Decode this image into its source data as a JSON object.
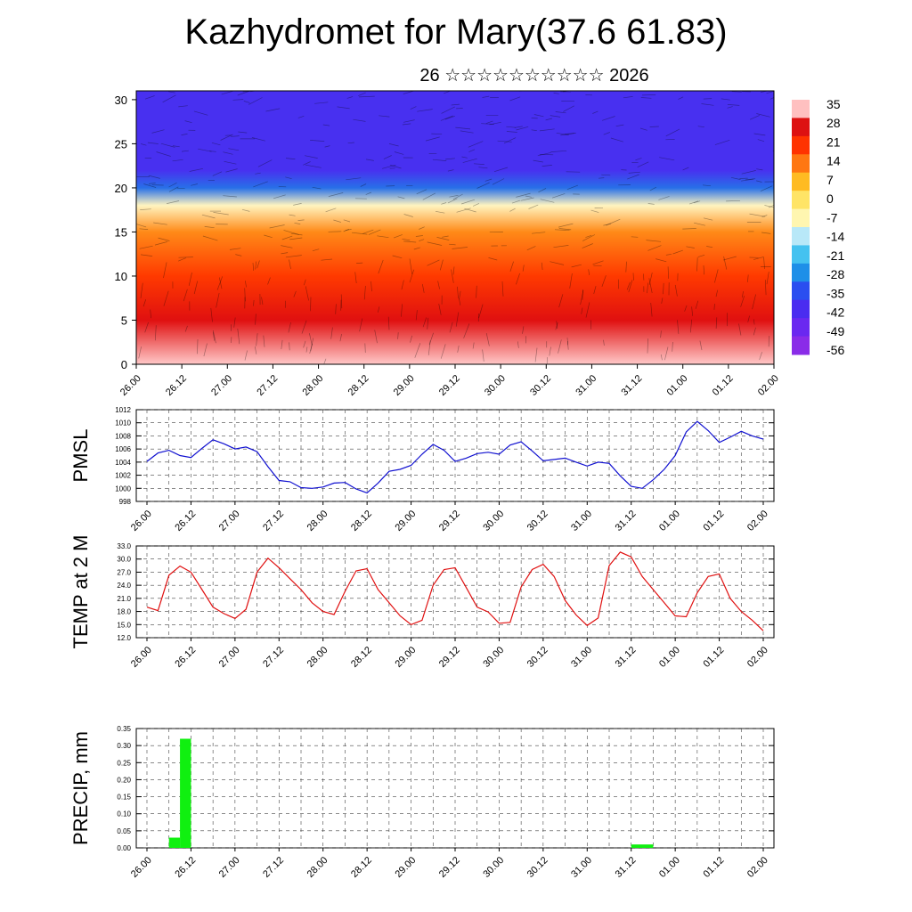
{
  "title": "Kazhydromet for Mary(37.6 61.83)",
  "subtitle": "26 ☆☆☆☆☆☆☆☆☆☆ 2026",
  "time_labels": [
    "26.00",
    "26.12",
    "27.00",
    "27.12",
    "28.00",
    "28.12",
    "29.00",
    "29.12",
    "30.00",
    "30.12",
    "31.00",
    "31.12",
    "01.00",
    "01.12",
    "02.00"
  ],
  "chart_data": [
    {
      "type": "heatmap",
      "panel": "cross-section",
      "y_ticks": [
        "0",
        "5",
        "10",
        "15",
        "20",
        "25",
        "30"
      ],
      "ylim": [
        0,
        31
      ],
      "colorbar": {
        "labels": [
          "35",
          "28",
          "21",
          "14",
          "7",
          "0",
          "-7",
          "-14",
          "-21",
          "-28",
          "-35",
          "-42",
          "-49",
          "-56"
        ],
        "colors": [
          "#ffc0c0",
          "#dd1111",
          "#ff3300",
          "#ff7711",
          "#ffbb22",
          "#ffe466",
          "#fff6b0",
          "#b8e8f8",
          "#44c2f0",
          "#1e8fe8",
          "#2a4ef0",
          "#4a2cf0",
          "#6a28f0",
          "#8a2ce8"
        ]
      },
      "temperature_profile": [
        {
          "level": 0,
          "temp": 30
        },
        {
          "level": 5,
          "temp": 24
        },
        {
          "level": 10,
          "temp": 14
        },
        {
          "level": 15,
          "temp": 2
        },
        {
          "level": 18,
          "temp": -22
        },
        {
          "level": 20,
          "temp": -40
        },
        {
          "level": 22,
          "temp": -54
        },
        {
          "level": 25,
          "temp": -58
        },
        {
          "level": 31,
          "temp": -56
        }
      ]
    },
    {
      "type": "line",
      "panel": "pmsl",
      "ylabel": "PMSL",
      "ylim": [
        998,
        1012
      ],
      "y_ticks": [
        "998",
        "1000",
        "1002",
        "1004",
        "1006",
        "1008",
        "1010",
        "1012"
      ],
      "color": "#1010d0",
      "x": [
        0,
        3,
        6,
        9,
        12,
        15,
        18,
        21,
        24,
        27,
        30,
        33,
        36,
        39,
        42,
        45,
        48,
        51,
        54,
        57,
        60,
        63,
        66,
        69,
        72,
        75,
        78,
        81,
        84,
        87,
        90,
        93,
        96,
        99,
        102,
        105,
        108,
        111,
        114,
        117,
        120,
        123,
        126,
        129,
        132,
        135,
        138,
        141,
        144
      ],
      "values": [
        1004.1,
        1005.4,
        1005.8,
        1005.0,
        1004.7,
        1006.1,
        1007.4,
        1006.8,
        1006.0,
        1006.3,
        1005.6,
        1003.3,
        1001.2,
        1001.0,
        1000.1,
        1000.0,
        1000.2,
        1000.8,
        1000.9,
        999.9,
        999.3,
        1000.8,
        1002.6,
        1002.9,
        1003.5,
        1005.2,
        1006.7,
        1005.8,
        1004.1,
        1004.6,
        1005.3,
        1005.5,
        1005.2,
        1006.6,
        1007.1,
        1005.7,
        1004.2,
        1004.4,
        1004.6,
        1004.0,
        1003.4,
        1004.0,
        1003.8,
        1001.9,
        1000.3,
        1000.0,
        1001.3,
        1002.9,
        1005.0
      ],
      "values_tail": [
        1008.6,
        1010.2,
        1008.8,
        1007.0,
        1007.8,
        1008.7,
        1008.0,
        1007.5
      ],
      "x_tail": [
        147,
        150,
        153,
        156,
        159,
        162,
        165,
        168
      ]
    },
    {
      "type": "line",
      "panel": "temp",
      "ylabel": "TEMP at 2 M",
      "ylim": [
        12,
        33
      ],
      "y_ticks": [
        "12.0",
        "15.0",
        "18.0",
        "21.0",
        "24.0",
        "27.0",
        "30.0",
        "33.0"
      ],
      "color": "#e01010",
      "x": [
        0,
        3,
        6,
        9,
        12,
        15,
        18,
        21,
        24,
        27,
        30,
        33,
        36,
        39,
        42,
        45,
        48,
        51,
        54,
        57,
        60,
        63,
        66,
        69,
        72,
        75,
        78,
        81,
        84,
        87,
        90,
        93,
        96,
        99,
        102,
        105,
        108,
        111,
        114,
        117,
        120,
        123,
        126,
        129,
        132,
        135,
        138,
        141,
        144,
        147,
        150,
        153,
        156,
        159,
        162,
        165,
        168
      ],
      "values": [
        19,
        18.2,
        26.3,
        28.4,
        27,
        23,
        19,
        17.5,
        16.4,
        18.5,
        27,
        30.2,
        28,
        25.5,
        23,
        20,
        18,
        17.3,
        22.6,
        27.3,
        27.8,
        23,
        20,
        17,
        15,
        16,
        24,
        27.6,
        28,
        23.5,
        19,
        17.9,
        15.3,
        15.5,
        23.6,
        27.6,
        28.8,
        26,
        20.5,
        17.2,
        14.8,
        16.5,
        28.5,
        31.6,
        30.5,
        26,
        23,
        20,
        17,
        16.8,
        22.3,
        26,
        26.6,
        21,
        18,
        16,
        13.6
      ]
    },
    {
      "type": "bar",
      "panel": "precip",
      "ylabel": "PRECIP, mm",
      "ylim": [
        0,
        0.35
      ],
      "y_ticks": [
        "0.00",
        "0.05",
        "0.10",
        "0.15",
        "0.20",
        "0.25",
        "0.30",
        "0.35"
      ],
      "color": "#10f010",
      "bars": [
        {
          "x0": 6,
          "x1": 9,
          "value": 0.03
        },
        {
          "x0": 9,
          "x1": 12,
          "value": 0.32
        },
        {
          "x0": 132,
          "x1": 138,
          "value": 0.01
        }
      ]
    }
  ]
}
